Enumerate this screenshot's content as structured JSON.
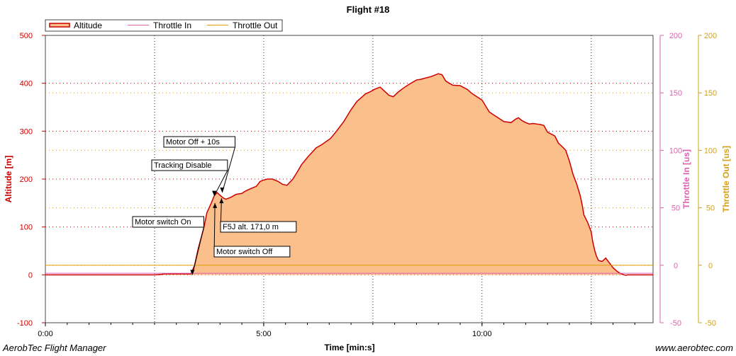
{
  "app": {
    "footer_left": "AerobTec Flight Manager",
    "footer_right": "www.aerobtec.com"
  },
  "colors": {
    "altitude_line": "#cc0000",
    "altitude_fill": "#fbbf8c",
    "throttle_in": "#e060b0",
    "throttle_out": "#e0a000",
    "axis_left": "#cc0000",
    "axis_throttle_in": "#e060b0",
    "axis_throttle_out": "#d4a017"
  },
  "chart_data": {
    "type": "area",
    "title": "Flight #18",
    "xlabel": "Time [min:s]",
    "ylabel": "Altitude [m]",
    "y2label": "Throttle In [us]",
    "y3label": "Throttle Out [us]",
    "xlim": [
      0,
      835
    ],
    "ylim": [
      -100,
      500
    ],
    "y2lim": [
      -50,
      200
    ],
    "y3lim": [
      -50,
      200
    ],
    "x_ticks": [
      {
        "value": 0,
        "label": "0:00"
      },
      {
        "value": 300,
        "label": "5:00"
      },
      {
        "value": 600,
        "label": "10:00"
      }
    ],
    "y_ticks": [
      -100,
      0,
      100,
      200,
      300,
      400,
      500
    ],
    "y2_ticks": [
      -50,
      0,
      50,
      100,
      150,
      200
    ],
    "y3_ticks": [
      -50,
      0,
      50,
      100,
      150,
      200
    ],
    "legend": {
      "position": "top-left",
      "entries": [
        "Altitude",
        "Throttle In",
        "Throttle Out"
      ]
    },
    "grid": true,
    "series": [
      {
        "name": "Altitude",
        "x": [
          0,
          150,
          160,
          162,
          200,
          205,
          210,
          218,
          222,
          228,
          232,
          236,
          240,
          245,
          248,
          255,
          262,
          270,
          275,
          282,
          290,
          295,
          300,
          305,
          312,
          320,
          326,
          332,
          340,
          345,
          352,
          360,
          372,
          380,
          392,
          400,
          410,
          420,
          428,
          440,
          446,
          453,
          460,
          470,
          472,
          478,
          485,
          492,
          500,
          510,
          515,
          520,
          530,
          540,
          545,
          550,
          555,
          560,
          570,
          580,
          585,
          590,
          600,
          610,
          620,
          630,
          640,
          646,
          650,
          655,
          660,
          665,
          670,
          675,
          680,
          685,
          690,
          700,
          705,
          710,
          715,
          720,
          725,
          730,
          735,
          738,
          740,
          745,
          750,
          752,
          755,
          757,
          760,
          765,
          770,
          775,
          780,
          785,
          790,
          795,
          798,
          800,
          805,
          810,
          812,
          815,
          818,
          820,
          835
        ],
        "y": [
          0,
          0,
          1,
          2,
          2,
          20,
          55,
          100,
          130,
          150,
          165,
          172,
          166,
          160,
          158,
          162,
          168,
          170,
          175,
          180,
          185,
          195,
          198,
          200,
          200,
          195,
          189,
          187,
          200,
          212,
          230,
          245,
          265,
          272,
          285,
          300,
          320,
          345,
          362,
          378,
          382,
          388,
          392,
          378,
          375,
          372,
          382,
          390,
          398,
          407,
          408,
          410,
          414,
          420,
          418,
          405,
          400,
          396,
          395,
          387,
          380,
          375,
          365,
          340,
          330,
          320,
          318,
          325,
          328,
          322,
          318,
          315,
          316,
          315,
          314,
          312,
          298,
          290,
          275,
          268,
          260,
          238,
          210,
          190,
          165,
          143,
          125,
          110,
          90,
          70,
          50,
          40,
          30,
          28,
          35,
          25,
          15,
          8,
          3,
          0,
          -1,
          0,
          0,
          0,
          0,
          0,
          0,
          0,
          0
        ]
      },
      {
        "name": "Throttle In",
        "x": [
          0,
          835
        ],
        "y": [
          -7,
          -7
        ]
      },
      {
        "name": "Throttle Out",
        "x": [
          0,
          835
        ],
        "y": [
          0,
          0
        ]
      }
    ],
    "annotations": [
      {
        "text": "Motor switch On",
        "x": 202,
        "y": 0
      },
      {
        "text": "Tracking Disable",
        "x": 232,
        "y": 165
      },
      {
        "text": "Motor switch Off",
        "x": 233,
        "y": 150
      },
      {
        "text": "Motor Off + 10s",
        "x": 243,
        "y": 172
      },
      {
        "text": "F5J alt. 171,0 m",
        "x": 242,
        "y": 160
      }
    ]
  }
}
